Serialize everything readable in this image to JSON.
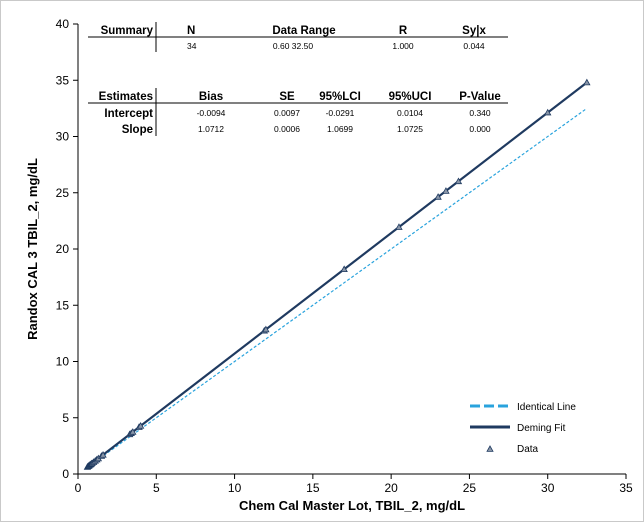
{
  "chart_data": {
    "type": "scatter",
    "xlabel": "Chem Cal Master Lot, TBIL_2, mg/dL",
    "ylabel": "Randox CAL 3 TBIL_2, mg/dL",
    "xlim": [
      0,
      35
    ],
    "ylim": [
      0,
      40
    ],
    "xticks": [
      "0",
      "5",
      "10",
      "15",
      "20",
      "25",
      "30",
      "35"
    ],
    "yticks": [
      "0",
      "5",
      "10",
      "15",
      "20",
      "25",
      "30",
      "35",
      "40"
    ],
    "grid": false,
    "legend_position": "bottom-right",
    "series": [
      {
        "name": "Identical Line",
        "kind": "line",
        "style": "dashed",
        "color": "#29a3dd",
        "x": [
          0.6,
          32.5
        ],
        "y": [
          0.6,
          32.5
        ]
      },
      {
        "name": "Deming Fit",
        "kind": "line",
        "style": "solid",
        "color": "#1f3a60",
        "x": [
          0.6,
          32.5
        ],
        "y": [
          0.633,
          34.805
        ]
      },
      {
        "name": "Data",
        "kind": "scatter",
        "marker": "triangle",
        "color": "#1f3a60",
        "x": [
          0.6,
          0.65,
          0.7,
          0.75,
          0.8,
          0.85,
          0.9,
          1.0,
          1.1,
          1.2,
          1.3,
          1.5,
          1.6,
          3.3,
          3.4,
          3.5,
          3.9,
          4.0,
          11.9,
          12.0,
          17.0,
          20.5,
          23.0,
          23.5,
          24.3,
          30.0,
          32.5
        ],
        "y": [
          0.63,
          0.69,
          0.74,
          0.8,
          0.85,
          0.9,
          0.96,
          1.06,
          1.17,
          1.28,
          1.38,
          1.6,
          1.7,
          3.53,
          3.63,
          3.74,
          4.17,
          4.28,
          12.74,
          12.85,
          18.2,
          21.95,
          24.63,
          25.16,
          26.02,
          32.13,
          34.8
        ]
      }
    ],
    "summary_table": {
      "headers": [
        "Summary",
        "N",
        "Data Range",
        "R",
        "Sy|x"
      ],
      "values": [
        "",
        "34",
        "0.60 32.50",
        "1.000",
        "0.044"
      ]
    },
    "estimates_table": {
      "headers": [
        "Estimates",
        "Bias",
        "SE",
        "95%LCI",
        "95%UCI",
        "P-Value"
      ],
      "rows": [
        {
          "label": "Intercept",
          "values": [
            "-0.0094",
            "0.0097",
            "-0.0291",
            "0.0104",
            "0.340"
          ]
        },
        {
          "label": "Slope",
          "values": [
            "1.0712",
            "0.0006",
            "1.0699",
            "1.0725",
            "0.000"
          ]
        }
      ]
    }
  }
}
